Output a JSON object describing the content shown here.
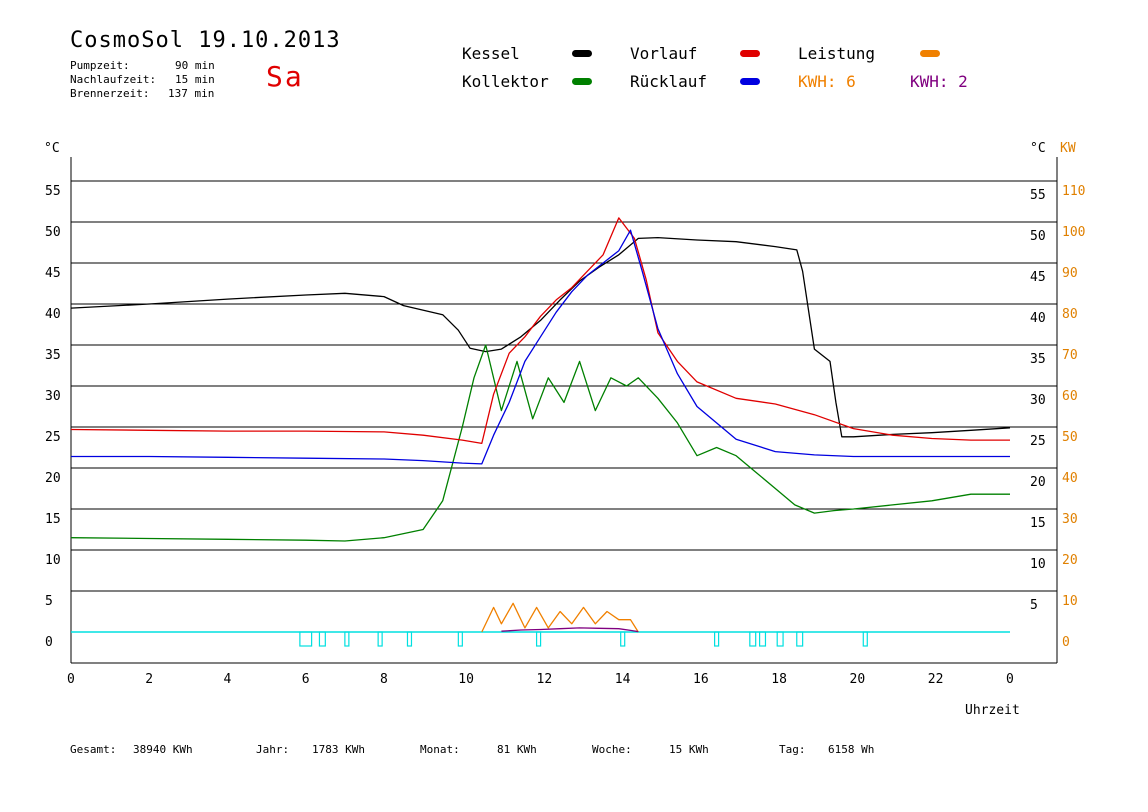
{
  "header": {
    "title": "CosmoSol 19.10.2013",
    "day": "Sa",
    "pumpzeit_label": "Pumpzeit:",
    "pumpzeit_value": "90 min",
    "nachlauf_label": "Nachlaufzeit:",
    "nachlauf_value": "15 min",
    "brenner_label": "Brennerzeit:",
    "brenner_value": "137 min"
  },
  "legend": {
    "kessel": "Kessel",
    "kollektor": "Kollektor",
    "vorlauf": "Vorlauf",
    "ruecklauf": "Rücklauf",
    "leistung": "Leistung",
    "kwh1": "KWH: 6",
    "kwh2": "KWH: 2"
  },
  "colors": {
    "kessel": "#000000",
    "kollektor": "#008000",
    "vorlauf": "#e00000",
    "ruecklauf": "#0000e0",
    "leistung": "#f08000",
    "kwh2": "#800080",
    "pump": "#00e0e0",
    "kw_axis": "#e08000"
  },
  "stats": {
    "gesamt_label": "Gesamt:",
    "gesamt_value": "38940 KWh",
    "jahr_label": "Jahr:",
    "jahr_value": "1783 KWh",
    "monat_label": "Monat:",
    "monat_value": "81 KWh",
    "woche_label": "Woche:",
    "woche_value": "15 KWh",
    "tag_label": "Tag:",
    "tag_value": "6158 Wh"
  },
  "chart_data": {
    "type": "line",
    "xlabel": "Uhrzeit",
    "ylabel_left": "°C",
    "ylabel_right_1": "°C",
    "ylabel_right_2": "KW",
    "xlim": [
      0,
      24
    ],
    "ylim": [
      -4,
      60
    ],
    "x_ticks": [
      "0",
      "2",
      "4",
      "6",
      "8",
      "10",
      "12",
      "14",
      "16",
      "18",
      "20",
      "22",
      "0"
    ],
    "y_ticks_left": [
      0,
      5,
      10,
      15,
      20,
      25,
      30,
      35,
      40,
      45,
      50,
      55
    ],
    "y_ticks_right_c": [
      5,
      10,
      15,
      20,
      25,
      30,
      35,
      40,
      45,
      50,
      55
    ],
    "y_ticks_right_kw": [
      0,
      10,
      20,
      30,
      40,
      50,
      60,
      70,
      80,
      90,
      100,
      110
    ],
    "series": [
      {
        "name": "Kessel",
        "key": "kessel",
        "x": [
          0,
          2,
          4,
          6,
          7,
          8,
          8.5,
          9.5,
          9.9,
          10.2,
          10.6,
          11.0,
          11.5,
          12,
          12.5,
          13,
          13.5,
          14,
          14.5,
          15,
          16,
          17,
          18,
          18.55,
          18.7,
          19.0,
          19.4,
          19.55,
          19.7,
          20,
          21,
          22,
          23,
          24
        ],
        "y": [
          39.5,
          40.0,
          40.6,
          41.1,
          41.3,
          40.9,
          39.8,
          38.7,
          36.8,
          34.6,
          34.2,
          34.5,
          36.0,
          38.0,
          40.5,
          42.8,
          44.5,
          46.0,
          48.0,
          48.1,
          47.8,
          47.6,
          47.0,
          46.6,
          44.0,
          34.5,
          33.0,
          28.0,
          23.8,
          23.8,
          24.1,
          24.3,
          24.6,
          24.9
        ]
      },
      {
        "name": "Kollektor",
        "key": "kollektor",
        "x": [
          0,
          2,
          4,
          6,
          7,
          8,
          9,
          9.5,
          10,
          10.3,
          10.6,
          11,
          11.4,
          11.8,
          12.2,
          12.6,
          13,
          13.4,
          13.8,
          14.2,
          14.5,
          15,
          15.5,
          16,
          16.5,
          17,
          17.5,
          18,
          18.5,
          19,
          19.5,
          20,
          21,
          22,
          23,
          24
        ],
        "y": [
          11.5,
          11.4,
          11.3,
          11.2,
          11.1,
          11.5,
          12.5,
          16.0,
          25.0,
          31.0,
          35.0,
          27.0,
          33.0,
          26.0,
          31.0,
          28.0,
          33.0,
          27.0,
          31.0,
          30.0,
          31.0,
          28.5,
          25.5,
          21.5,
          22.5,
          21.5,
          19.5,
          17.5,
          15.5,
          14.5,
          14.8,
          15.0,
          15.5,
          16.0,
          16.8,
          16.8
        ]
      },
      {
        "name": "Vorlauf",
        "key": "vorlauf",
        "x": [
          0,
          2,
          4,
          6,
          8,
          9,
          10,
          10.5,
          10.8,
          11.2,
          11.6,
          12,
          12.4,
          12.8,
          13.2,
          13.6,
          14,
          14.4,
          14.7,
          15,
          15.5,
          16,
          17,
          18,
          19,
          20,
          21,
          22,
          23,
          24
        ],
        "y": [
          24.7,
          24.6,
          24.5,
          24.5,
          24.4,
          24.0,
          23.4,
          23.0,
          29.0,
          34.0,
          36.0,
          38.5,
          40.5,
          42.0,
          44.0,
          46.0,
          50.5,
          48.0,
          43.0,
          36.5,
          33.0,
          30.5,
          28.5,
          27.8,
          26.5,
          24.8,
          24.0,
          23.6,
          23.4,
          23.4
        ]
      },
      {
        "name": "Rücklauf",
        "key": "ruecklauf",
        "x": [
          0,
          2,
          4,
          6,
          8,
          9,
          10,
          10.5,
          10.8,
          11.2,
          11.6,
          12,
          12.4,
          12.8,
          13.2,
          13.6,
          14,
          14.3,
          14.6,
          15,
          15.5,
          16,
          17,
          18,
          19,
          20,
          21,
          22,
          23,
          24
        ],
        "y": [
          21.4,
          21.4,
          21.3,
          21.2,
          21.1,
          20.9,
          20.6,
          20.5,
          24.0,
          28.0,
          33.0,
          36.0,
          39.0,
          41.5,
          43.5,
          45.0,
          46.5,
          49.0,
          44.0,
          37.0,
          31.5,
          27.5,
          23.5,
          22.0,
          21.6,
          21.4,
          21.4,
          21.4,
          21.4,
          21.4
        ]
      },
      {
        "name": "Leistung",
        "key": "leistung",
        "axis": "kw",
        "x": [
          10.5,
          10.8,
          11.0,
          11.3,
          11.6,
          11.9,
          12.2,
          12.5,
          12.8,
          13.1,
          13.4,
          13.7,
          14.0,
          14.3,
          14.5
        ],
        "y": [
          0,
          6,
          2,
          7,
          1,
          6,
          1,
          5,
          2,
          6,
          2,
          5,
          3,
          3,
          0
        ]
      },
      {
        "name": "KWH 2",
        "key": "kwh2",
        "axis": "kw",
        "x": [
          11.0,
          11.5,
          12.0,
          12.5,
          13.0,
          13.5,
          14.0,
          14.3,
          14.5
        ],
        "y": [
          0.2,
          0.5,
          0.6,
          0.8,
          1.0,
          0.9,
          0.8,
          0.4,
          0.1
        ]
      }
    ],
    "pump_intervals": [
      [
        5.85,
        6.15
      ],
      [
        6.35,
        6.5
      ],
      [
        7.0,
        7.1
      ],
      [
        7.85,
        7.95
      ],
      [
        8.6,
        8.7
      ],
      [
        9.9,
        10.0
      ],
      [
        11.9,
        12.0
      ],
      [
        14.05,
        14.15
      ],
      [
        16.45,
        16.55
      ],
      [
        17.35,
        17.5
      ],
      [
        17.6,
        17.75
      ],
      [
        18.05,
        18.2
      ],
      [
        18.55,
        18.7
      ],
      [
        20.25,
        20.35
      ]
    ],
    "grid": true,
    "legend_position": "top"
  }
}
